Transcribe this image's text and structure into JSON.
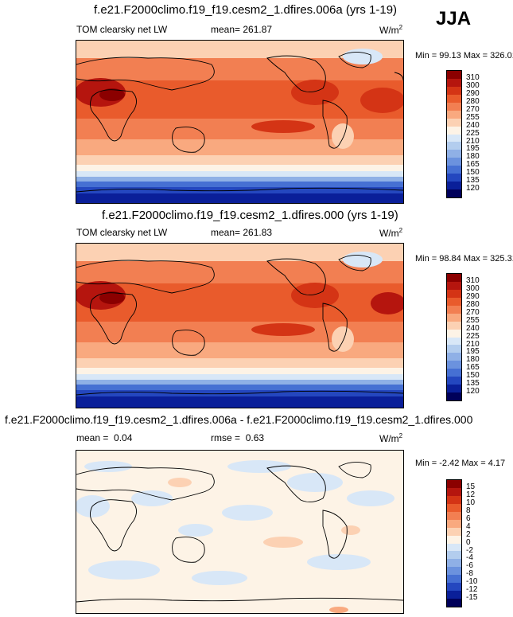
{
  "season": "JJA",
  "panels": [
    {
      "title": "f.e21.F2000climo.f19_f19.cesm2_1.dfires.006a (yrs 1-19)",
      "variable": "TOM clearsky net LW",
      "mean_label": "mean=",
      "mean": "261.87",
      "units": "W/m",
      "units_exp": "2",
      "minmax": "Min = 99.13 Max = 326.01",
      "levels": [
        "310",
        "300",
        "290",
        "280",
        "270",
        "255",
        "240",
        "225",
        "210",
        "195",
        "180",
        "165",
        "150",
        "135",
        "120"
      ],
      "colors": [
        "#8b0000",
        "#b5150e",
        "#d43415",
        "#e95b2c",
        "#f27f52",
        "#f9a97f",
        "#fcd1b3",
        "#fdf3e6",
        "#d8e7f7",
        "#b3cdee",
        "#8fb0e6",
        "#6b92de",
        "#4670d3",
        "#2447bf",
        "#0a1f99",
        "#00005a"
      ]
    },
    {
      "title": "f.e21.F2000climo.f19_f19.cesm2_1.dfires.000 (yrs 1-19)",
      "variable": "TOM clearsky net LW",
      "mean_label": "mean=",
      "mean": "261.83",
      "units": "W/m",
      "units_exp": "2",
      "minmax": "Min = 98.84 Max = 325.31",
      "levels": [
        "310",
        "300",
        "290",
        "280",
        "270",
        "255",
        "240",
        "225",
        "210",
        "195",
        "180",
        "165",
        "150",
        "135",
        "120"
      ],
      "colors": [
        "#8b0000",
        "#b5150e",
        "#d43415",
        "#e95b2c",
        "#f27f52",
        "#f9a97f",
        "#fcd1b3",
        "#fdf3e6",
        "#d8e7f7",
        "#b3cdee",
        "#8fb0e6",
        "#6b92de",
        "#4670d3",
        "#2447bf",
        "#0a1f99",
        "#00005a"
      ]
    },
    {
      "title": "f.e21.F2000climo.f19_f19.cesm2_1.dfires.006a - f.e21.F2000climo.f19_f19.cesm2_1.dfires.000",
      "mean_label": "mean =",
      "mean": "0.04",
      "rmse_label": "rmse =",
      "rmse": "0.63",
      "units": "W/m",
      "units_exp": "2",
      "minmax": "Min = -2.42 Max = 4.17",
      "levels": [
        "15",
        "12",
        "10",
        "8",
        "6",
        "4",
        "2",
        "0",
        "-2",
        "-4",
        "-6",
        "-8",
        "-10",
        "-12",
        "-15"
      ],
      "colors": [
        "#8b0000",
        "#b5150e",
        "#d43415",
        "#e95b2c",
        "#f27f52",
        "#f9a97f",
        "#fcd1b3",
        "#fdf3e6",
        "#d8e7f7",
        "#b3cdee",
        "#8fb0e6",
        "#6b92de",
        "#4670d3",
        "#2447bf",
        "#0a1f99",
        "#00005a"
      ]
    }
  ]
}
